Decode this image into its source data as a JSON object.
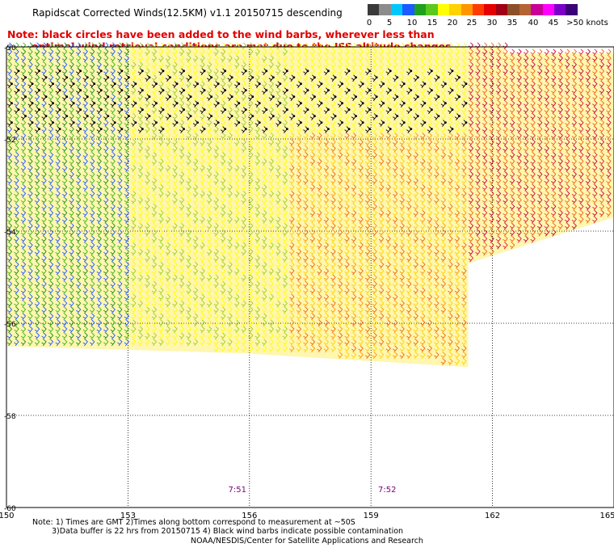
{
  "title": "Rapidscat Corrected Winds(12.5KM) v1.1 20150715 descending",
  "note": {
    "line1": "Note: black circles have been added to the wind barbs, wherever less than",
    "line2": "optimal wind retrieval conditions are met due to the ISS altitude changes."
  },
  "legend": {
    "labels": [
      "0",
      "5",
      "10",
      "15",
      "20",
      "25",
      "30",
      "35",
      "40",
      "45",
      ">50 knots"
    ],
    "colors": [
      "#3a3a3a",
      "#8c8c8c",
      "#00c8ff",
      "#1e5aff",
      "#1fa01f",
      "#5ac81e",
      "#ffff00",
      "#ffd200",
      "#ff9600",
      "#ff3c00",
      "#e60000",
      "#a00014",
      "#8c5028",
      "#b46432",
      "#c80096",
      "#ff00ff",
      "#7a00c8",
      "#3c0078"
    ]
  },
  "chart_data": {
    "type": "map",
    "x_axis": {
      "ticks": [
        "150",
        "153",
        "156",
        "159",
        "162",
        "165"
      ],
      "range": [
        150,
        165
      ]
    },
    "y_axis": {
      "ticks": [
        "-50",
        "-52",
        "-54",
        "-56",
        "-58",
        "-60"
      ],
      "range": [
        -60,
        -50
      ]
    },
    "grid": true,
    "time_labels": [
      {
        "lon": 155.7,
        "text": "7:51"
      },
      {
        "lon": 159.4,
        "text": "7:52"
      }
    ],
    "swath": {
      "polygon": [
        [
          150.0,
          -50.0
        ],
        [
          162.3,
          -50.0
        ],
        [
          162.3,
          -50.15
        ],
        [
          165.0,
          -50.15
        ],
        [
          165.0,
          -53.7
        ],
        [
          161.4,
          -54.7
        ],
        [
          161.4,
          -56.95
        ],
        [
          155.8,
          -56.65
        ],
        [
          150.0,
          -56.5
        ]
      ],
      "contaminated_region": {
        "lon": [
          150.0,
          161.3
        ],
        "lat": [
          -52.0,
          -50.6
        ]
      },
      "speed_regions": [
        {
          "lon": [
            150,
            153
          ],
          "lat": [
            -56.6,
            -50
          ],
          "knots_range": [
            12,
            19
          ]
        },
        {
          "lon": [
            153,
            157
          ],
          "lat": [
            -56.6,
            -50
          ],
          "knots_range": [
            19,
            24
          ]
        },
        {
          "lon": [
            157,
            161.4
          ],
          "lat": [
            -57,
            -52
          ],
          "knots_range": [
            24,
            31
          ]
        },
        {
          "lon": [
            161.4,
            165
          ],
          "lat": [
            -54.7,
            -50
          ],
          "knots_range": [
            30,
            37
          ]
        }
      ]
    }
  },
  "footer": {
    "line1": "Note: 1) Times are GMT 2)Times along bottom correspond to measurement at ~50S",
    "line2": "3)Data buffer is 22 hrs from 20150715 4) Black wind barbs indicate possible contamination",
    "credit": "NOAA/NESDIS/Center for Satellite Applications and Research"
  }
}
